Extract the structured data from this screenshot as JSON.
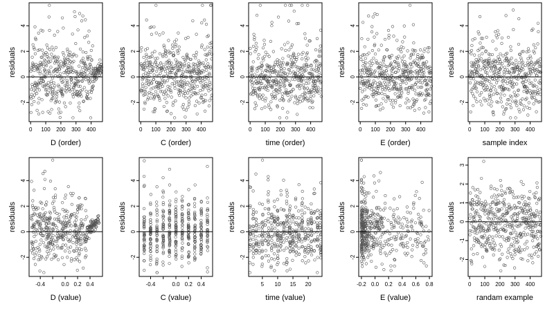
{
  "figure": {
    "point_color": "#555555",
    "line_color": "#000000"
  },
  "chart_data": [
    {
      "id": "p1",
      "type": "scatter",
      "xlabel": "D (order)",
      "ylabel": "residuals",
      "xlim": [
        -10,
        475
      ],
      "ylim": [
        -3.5,
        5.8
      ],
      "xticks": [
        0,
        100,
        200,
        300,
        400
      ],
      "xticklabels": [
        "0",
        "100",
        "200",
        "300",
        "400"
      ],
      "yticks": [
        -2,
        0,
        2,
        4
      ],
      "yticklabels": [
        "-2",
        "0",
        "2",
        "4"
      ],
      "hline": 0,
      "seed": 11,
      "n": 470,
      "pattern": "index_trend",
      "x_range": [
        1,
        470
      ]
    },
    {
      "id": "p2",
      "type": "scatter",
      "xlabel": "C (order)",
      "ylabel": "residuals",
      "xlim": [
        -10,
        475
      ],
      "ylim": [
        -3.5,
        5.8
      ],
      "xticks": [
        0,
        100,
        200,
        300,
        400
      ],
      "xticklabels": [
        "0",
        "100",
        "200",
        "300",
        "400"
      ],
      "yticks": [
        -2,
        0,
        2,
        4
      ],
      "yticklabels": [
        "-2",
        "0",
        "2",
        "4"
      ],
      "hline": 0,
      "seed": 23,
      "n": 470,
      "pattern": "index",
      "x_range": [
        1,
        470
      ]
    },
    {
      "id": "p3",
      "type": "scatter",
      "xlabel": "time (order)",
      "ylabel": "residuals",
      "xlim": [
        -10,
        475
      ],
      "ylim": [
        -3.5,
        5.8
      ],
      "xticks": [
        0,
        100,
        200,
        300,
        400
      ],
      "xticklabels": [
        "0",
        "100",
        "200",
        "300",
        "400"
      ],
      "yticks": [
        -2,
        0,
        2,
        4
      ],
      "yticklabels": [
        "-2",
        "0",
        "2",
        "4"
      ],
      "hline": 0,
      "seed": 37,
      "n": 470,
      "pattern": "index",
      "x_range": [
        1,
        470
      ]
    },
    {
      "id": "p4",
      "type": "scatter",
      "xlabel": "E (order)",
      "ylabel": "residuals",
      "xlim": [
        -10,
        475
      ],
      "ylim": [
        -3.5,
        5.8
      ],
      "xticks": [
        0,
        100,
        200,
        300,
        400
      ],
      "xticklabels": [
        "0",
        "100",
        "200",
        "300",
        "400"
      ],
      "yticks": [
        -2,
        0,
        2,
        4
      ],
      "yticklabels": [
        "-2",
        "0",
        "2",
        "4"
      ],
      "hline": 0,
      "seed": 41,
      "n": 470,
      "pattern": "index",
      "x_range": [
        1,
        470
      ]
    },
    {
      "id": "p5",
      "type": "scatter",
      "xlabel": "sample index",
      "ylabel": "residuals",
      "xlim": [
        -10,
        475
      ],
      "ylim": [
        -3.5,
        5.8
      ],
      "xticks": [
        0,
        100,
        200,
        300,
        400
      ],
      "xticklabels": [
        "0",
        "100",
        "200",
        "300",
        "400"
      ],
      "yticks": [
        -2,
        0,
        2,
        4
      ],
      "yticklabels": [
        "-2",
        "0",
        "2",
        "4"
      ],
      "hline": 0,
      "seed": 53,
      "n": 470,
      "pattern": "index",
      "x_range": [
        1,
        470
      ]
    },
    {
      "id": "p6",
      "type": "scatter",
      "xlabel": "D (value)",
      "ylabel": "residuals",
      "xlim": [
        -0.58,
        0.6
      ],
      "ylim": [
        -3.5,
        5.8
      ],
      "xticks": [
        -0.4,
        -0.2,
        0.0,
        0.2,
        0.4
      ],
      "xticklabels": [
        "-0.4",
        "",
        "0.0",
        "0.2",
        "0.4"
      ],
      "yticks": [
        -2,
        0,
        2,
        4
      ],
      "yticklabels": [
        "-2",
        "0",
        "2",
        "4"
      ],
      "hline": 0,
      "seed": 61,
      "n": 470,
      "pattern": "continuous_trend",
      "x_range": [
        -0.55,
        0.55
      ]
    },
    {
      "id": "p7",
      "type": "scatter",
      "xlabel": "C (value)",
      "ylabel": "residuals",
      "xlim": [
        -0.58,
        0.58
      ],
      "ylim": [
        -3.5,
        5.8
      ],
      "xticks": [
        -0.4,
        -0.2,
        0.0,
        0.2,
        0.4
      ],
      "xticklabels": [
        "-0.4",
        "",
        "0.0",
        "0.2",
        "0.4"
      ],
      "yticks": [
        -2,
        0,
        2,
        4
      ],
      "yticklabels": [
        "-2",
        "0",
        "2",
        "4"
      ],
      "hline": 0,
      "seed": 71,
      "n": 470,
      "pattern": "discrete",
      "levels": [
        -0.5,
        -0.4,
        -0.3,
        -0.2,
        -0.1,
        0.0,
        0.1,
        0.2,
        0.3,
        0.4,
        0.5
      ]
    },
    {
      "id": "p8",
      "type": "scatter",
      "xlabel": "time (value)",
      "ylabel": "residuals",
      "xlim": [
        0.5,
        24.5
      ],
      "ylim": [
        -3.5,
        5.8
      ],
      "xticks": [
        5,
        10,
        15,
        20
      ],
      "xticklabels": [
        "5",
        "10",
        "15",
        "20"
      ],
      "yticks": [
        -2,
        0,
        2,
        4
      ],
      "yticklabels": [
        "-2",
        "0",
        "2",
        "4"
      ],
      "hline": 0,
      "seed": 83,
      "n": 470,
      "pattern": "discrete",
      "levels": [
        1,
        2,
        3,
        4,
        5,
        6,
        7,
        8,
        9,
        10,
        11,
        12,
        13,
        14,
        15,
        16,
        17,
        18,
        19,
        20,
        21,
        22,
        23,
        24
      ]
    },
    {
      "id": "p9",
      "type": "scatter",
      "xlabel": "E (value)",
      "ylabel": "residuals",
      "xlim": [
        -0.24,
        0.84
      ],
      "ylim": [
        -3.5,
        5.8
      ],
      "xticks": [
        -0.2,
        0.0,
        0.2,
        0.4,
        0.6,
        0.8
      ],
      "xticklabels": [
        "-0.2",
        "0.0",
        "0.2",
        "0.4",
        "0.6",
        "0.8"
      ],
      "yticks": [
        -2,
        0,
        2,
        4
      ],
      "yticklabels": [
        "-2",
        "0",
        "2",
        "4"
      ],
      "hline": 0,
      "seed": 97,
      "n": 470,
      "pattern": "skewed",
      "x_range": [
        -0.2,
        0.8
      ]
    },
    {
      "id": "p10",
      "type": "scatter",
      "xlabel": "randam example",
      "ylabel": "residuals",
      "xlim": [
        -10,
        475
      ],
      "ylim": [
        -2.9,
        3.4
      ],
      "xticks": [
        0,
        100,
        200,
        300,
        400
      ],
      "xticklabels": [
        "0",
        "100",
        "200",
        "300",
        "400"
      ],
      "yticks": [
        -2,
        -1,
        0,
        1,
        2,
        3
      ],
      "yticklabels": [
        "-2",
        "-1",
        "0",
        "1",
        "2",
        "3"
      ],
      "hline": 0,
      "seed": 101,
      "n": 470,
      "pattern": "uniform",
      "x_range": [
        1,
        470
      ]
    }
  ]
}
